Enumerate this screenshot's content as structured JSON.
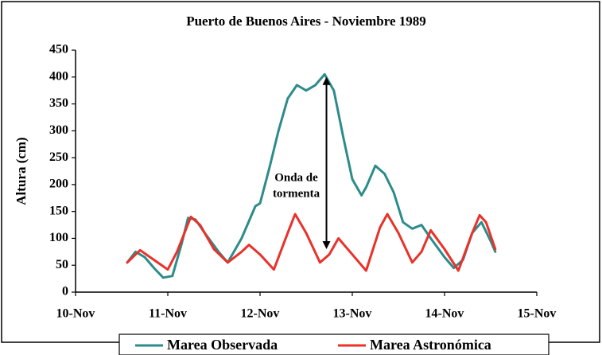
{
  "chart_data": {
    "type": "line",
    "title": "Puerto de Buenos Aires - Noviembre 1989",
    "y_label": "Altura (cm)",
    "xlim": [
      10,
      15
    ],
    "xticks": [
      {
        "value": 10,
        "label": "10-Nov"
      },
      {
        "value": 11,
        "label": "11-Nov"
      },
      {
        "value": 12,
        "label": "12-Nov"
      },
      {
        "value": 13,
        "label": "13-Nov"
      },
      {
        "value": 14,
        "label": "14-Nov"
      },
      {
        "value": 15,
        "label": "15-Nov"
      }
    ],
    "ylim": [
      0,
      450
    ],
    "yticks": [
      0,
      50,
      100,
      150,
      200,
      250,
      300,
      350,
      400,
      450
    ],
    "grid": false,
    "legend": "bottom",
    "series": [
      {
        "name": "Marea Observada",
        "color": "#2e8b8b",
        "x": [
          10.56,
          10.65,
          10.75,
          10.85,
          10.95,
          11.05,
          11.15,
          11.22,
          11.3,
          11.4,
          11.55,
          11.65,
          11.8,
          11.95,
          12.0,
          12.1,
          12.2,
          12.3,
          12.4,
          12.5,
          12.6,
          12.7,
          12.8,
          12.9,
          13.0,
          13.1,
          13.15,
          13.25,
          13.35,
          13.45,
          13.55,
          13.65,
          13.75,
          13.85,
          14.0,
          14.1,
          14.2,
          14.3,
          14.4,
          14.5,
          14.55
        ],
        "values": [
          55,
          75,
          65,
          45,
          27,
          30,
          90,
          138,
          135,
          110,
          75,
          55,
          100,
          160,
          165,
          230,
          300,
          360,
          385,
          375,
          385,
          405,
          375,
          290,
          210,
          180,
          195,
          235,
          220,
          185,
          130,
          118,
          125,
          100,
          65,
          45,
          60,
          110,
          130,
          95,
          75
        ]
      },
      {
        "name": "Marea Astronómica",
        "color": "#e8322a",
        "x": [
          10.56,
          10.7,
          10.85,
          11.0,
          11.1,
          11.25,
          11.35,
          11.5,
          11.65,
          11.8,
          11.88,
          12.0,
          12.15,
          12.3,
          12.38,
          12.5,
          12.65,
          12.75,
          12.85,
          13.0,
          13.15,
          13.3,
          13.38,
          13.5,
          13.65,
          13.75,
          13.85,
          14.0,
          14.15,
          14.3,
          14.38,
          14.45,
          14.55
        ],
        "values": [
          55,
          78,
          60,
          42,
          75,
          140,
          125,
          80,
          55,
          75,
          88,
          70,
          42,
          110,
          145,
          110,
          55,
          70,
          100,
          70,
          40,
          120,
          145,
          110,
          55,
          75,
          115,
          80,
          40,
          110,
          143,
          130,
          80
        ]
      }
    ],
    "annotation": {
      "lines": [
        "Onda de",
        "tormenta"
      ],
      "x": 12.72,
      "y_from": 80,
      "y_to": 400
    }
  }
}
